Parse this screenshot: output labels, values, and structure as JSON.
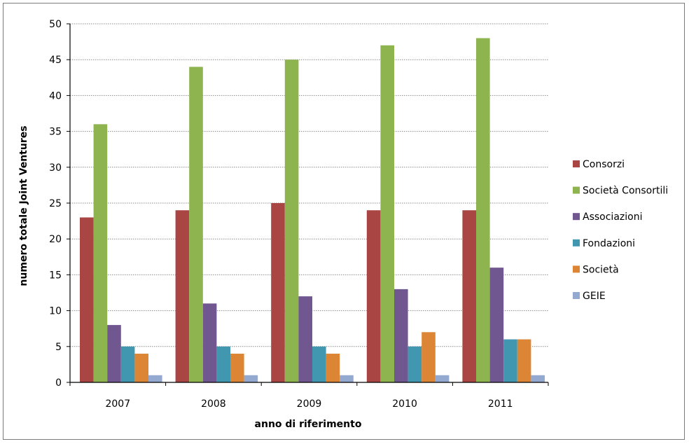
{
  "chart_data": {
    "type": "bar",
    "title": "",
    "xlabel": "anno di riferimento",
    "ylabel": "numero totale Joint Ventures",
    "categories": [
      "2007",
      "2008",
      "2009",
      "2010",
      "2011"
    ],
    "ylim": [
      0,
      50
    ],
    "yticks": [
      0,
      5,
      10,
      15,
      20,
      25,
      30,
      35,
      40,
      45,
      50
    ],
    "grid": true,
    "legend_position": "right",
    "series": [
      {
        "name": "Consorzi",
        "color": "#a94644",
        "values": [
          23,
          24,
          25,
          24,
          24
        ]
      },
      {
        "name": "Società Consortili",
        "color": "#8eb44f",
        "values": [
          36,
          44,
          45,
          47,
          48
        ]
      },
      {
        "name": "Associazioni",
        "color": "#71578f",
        "values": [
          8,
          11,
          12,
          13,
          16
        ]
      },
      {
        "name": "Fondazioni",
        "color": "#4197b0",
        "values": [
          5,
          5,
          5,
          5,
          6
        ]
      },
      {
        "name": "Società",
        "color": "#dc8535",
        "values": [
          4,
          4,
          4,
          7,
          6
        ]
      },
      {
        "name": "GEIE",
        "color": "#93a9cf",
        "values": [
          1,
          1,
          1,
          1,
          1
        ]
      }
    ]
  }
}
